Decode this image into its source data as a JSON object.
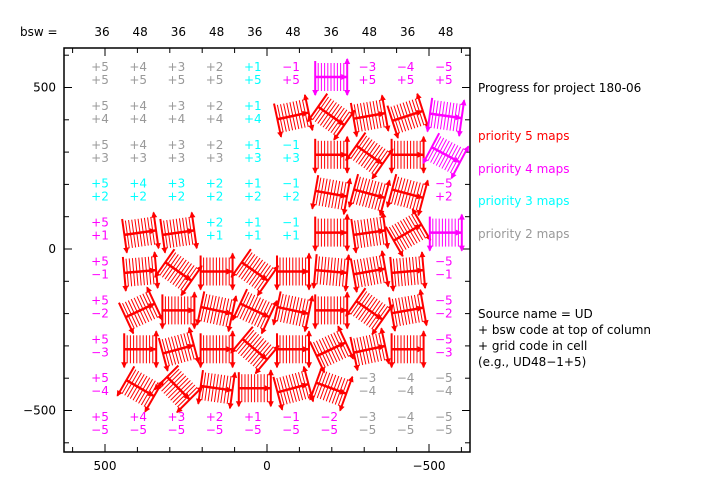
{
  "chart_data": {
    "type": "grid-map",
    "title": "Progress for project 180-06",
    "header_label": "bsw =",
    "bsw_codes": [
      "36",
      "48",
      "36",
      "48",
      "36",
      "48",
      "36",
      "48",
      "36",
      "48"
    ],
    "col_codes": [
      "+5",
      "+4",
      "+3",
      "+2",
      "+1",
      "−1",
      "−2",
      "−3",
      "−4",
      "−5"
    ],
    "row_codes": [
      "+5",
      "+4",
      "+3",
      "+2",
      "+1",
      "−1",
      "−2",
      "−3",
      "−4",
      "−5"
    ],
    "x_ticks": [
      {
        "value": 500,
        "label": "500"
      },
      {
        "value": 0,
        "label": "0"
      },
      {
        "value": -500,
        "label": "−500"
      }
    ],
    "y_ticks": [
      {
        "value": 500,
        "label": "500"
      },
      {
        "value": 0,
        "label": "0"
      },
      {
        "value": -500,
        "label": "−500"
      }
    ],
    "xlim": [
      630,
      -630
    ],
    "ylim": [
      -630,
      620
    ],
    "colors": {
      "p5": "#ff0000",
      "p4": "#ff00ff",
      "p3": "#00ffff",
      "p2": "#999999",
      "axis": "#000000"
    },
    "cells": [
      [
        "t2",
        "t2",
        "t2",
        "t2",
        "t3",
        "t4",
        "g4:0",
        "t4",
        "t4",
        "t4"
      ],
      [
        "t2",
        "t2",
        "t2",
        "t2",
        "t3",
        "g5:12",
        "g5:-35",
        "g5:10",
        "g5:18",
        "g4:-8"
      ],
      [
        "t2",
        "t2",
        "t2",
        "t2",
        "t3",
        "t3",
        "g5:0",
        "g5:-35",
        "g5:0",
        "g4:-28"
      ],
      [
        "t3",
        "t3",
        "t3",
        "t3",
        "t3",
        "t3",
        "g5:-10",
        "g5:-15",
        "g5:-15",
        "t4"
      ],
      [
        "t4",
        "g5:8",
        "g5:8",
        "t3",
        "t3",
        "t3",
        "g5:0",
        "g5:8",
        "g5:30",
        "g4:0"
      ],
      [
        "t4",
        "g5:5",
        "g5:-35",
        "g5:0",
        "g5:-35",
        "g5:0",
        "g5:-5",
        "g5:10",
        "g5:5",
        "t4"
      ],
      [
        "t4",
        "g5:25",
        "g5:0",
        "g5:-12",
        "g5:-25",
        "g5:-12",
        "g5:0",
        "g5:-35",
        "g5:10",
        "t4"
      ],
      [
        "t4",
        "g5:0",
        "g5:15",
        "g5:0",
        "g5:-40",
        "g5:0",
        "g5:25",
        "g5:12",
        "g5:0",
        "t4"
      ],
      [
        "t4",
        "g5:-30",
        "g5:-45",
        "g5:-8",
        "g5:0",
        "g5:15",
        "g5:-20",
        "t2",
        "t2",
        "t2"
      ],
      [
        "t4",
        "t4",
        "t4",
        "t4",
        "t4",
        "t4",
        "t4",
        "t2",
        "t2",
        "t2"
      ]
    ]
  },
  "legend": {
    "title": "Progress for project 180-06",
    "items": [
      {
        "label": "priority 5 maps",
        "color": "#ff0000"
      },
      {
        "label": "priority 4 maps",
        "color": "#ff00ff"
      },
      {
        "label": "priority 3 maps",
        "color": "#00ffff"
      },
      {
        "label": "priority 2 maps",
        "color": "#999999"
      }
    ],
    "notes": [
      "Source name = UD",
      "+ bsw code at top of column",
      "+ grid code in cell",
      "(e.g., UD48−1+5)"
    ]
  }
}
